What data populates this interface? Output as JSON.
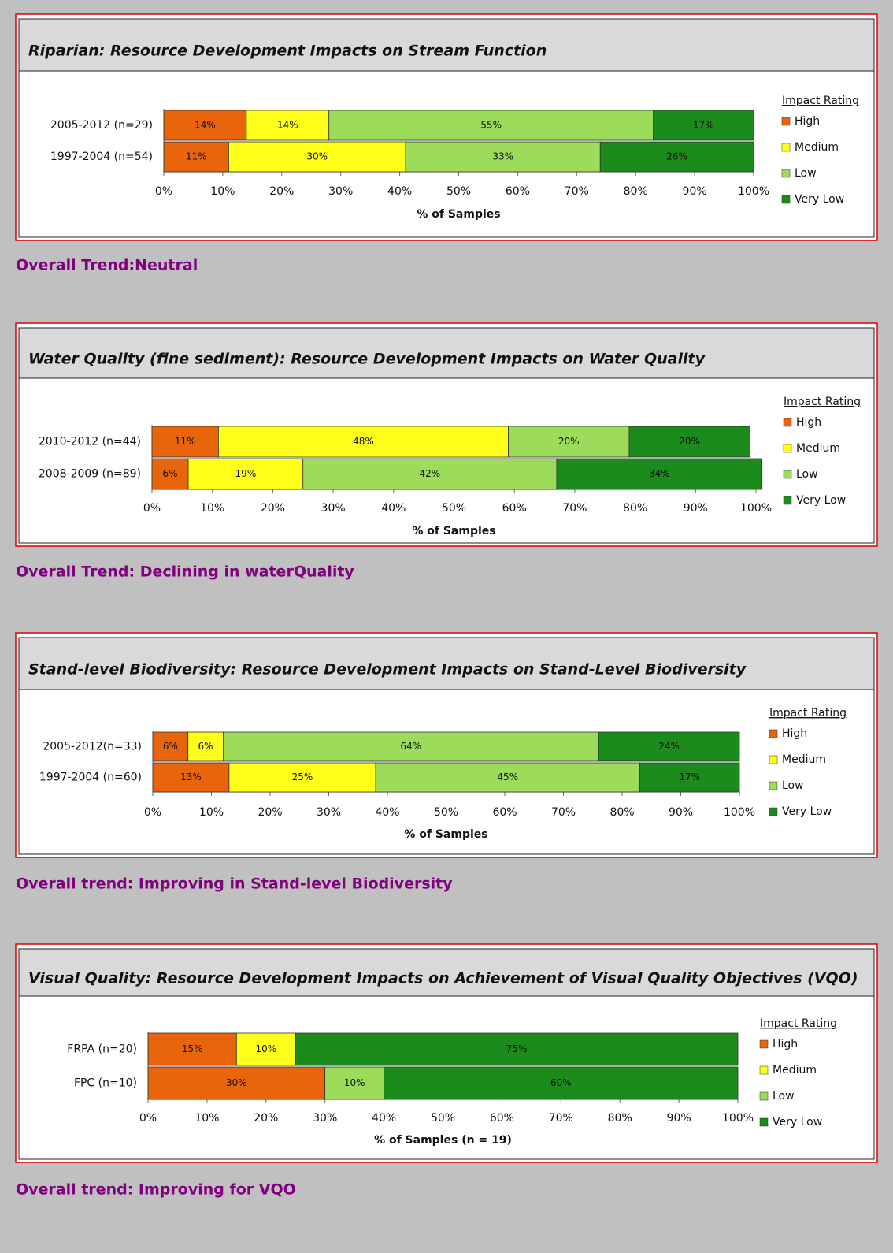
{
  "chart_data": [
    {
      "type": "stacked-bar",
      "title": "Riparian: Resource Development Impacts on Stream Function",
      "categories": [
        "2005-2012 (n=29)",
        "1997-2004 (n=54)"
      ],
      "series": [
        {
          "name": "High",
          "color": "#e8650c",
          "values": [
            14,
            11
          ],
          "value_labels": [
            "14%",
            "11%"
          ]
        },
        {
          "name": "Medium",
          "color": "#ffff1a",
          "values": [
            14,
            30
          ],
          "value_labels": [
            "14%",
            "30%"
          ]
        },
        {
          "name": "Low",
          "color": "#9ddc5a",
          "values": [
            55,
            33
          ],
          "value_labels": [
            "55%",
            "33%"
          ]
        },
        {
          "name": "Very Low",
          "color": "#1b8c1b",
          "values": [
            17,
            26
          ],
          "value_labels": [
            "17%",
            "26%"
          ]
        }
      ],
      "xlabel": "% of Samples",
      "legend_title": "Impact Rating",
      "xlim": [
        0,
        100
      ],
      "xticks": [
        {
          "value": 0,
          "label": "0%"
        },
        {
          "value": 10,
          "label": "10%"
        },
        {
          "value": 20,
          "label": "20%"
        },
        {
          "value": 30,
          "label": "30%"
        },
        {
          "value": 40,
          "label": "40%"
        },
        {
          "value": 50,
          "label": "50%"
        },
        {
          "value": 60,
          "label": "60%"
        },
        {
          "value": 70,
          "label": "70%"
        },
        {
          "value": 80,
          "label": "80%"
        },
        {
          "value": 90,
          "label": "90%"
        },
        {
          "value": 100,
          "label": "100%"
        }
      ],
      "legend": "right"
    },
    {
      "type": "stacked-bar",
      "title": "Water Quality (fine sediment): Resource Development Impacts on Water Quality",
      "categories": [
        "2010-2012 (n=44)",
        "2008-2009 (n=89)"
      ],
      "series": [
        {
          "name": "High",
          "color": "#e8650c",
          "values": [
            11,
            6
          ],
          "value_labels": [
            "11%",
            "6%"
          ]
        },
        {
          "name": "Medium",
          "color": "#ffff1a",
          "values": [
            48,
            19
          ],
          "value_labels": [
            "48%",
            "19%"
          ]
        },
        {
          "name": "Low",
          "color": "#9ddc5a",
          "values": [
            20,
            42
          ],
          "value_labels": [
            "20%",
            "42%"
          ]
        },
        {
          "name": "Very Low",
          "color": "#1b8c1b",
          "values": [
            20,
            34
          ],
          "value_labels": [
            "20%",
            "34%"
          ]
        }
      ],
      "xlabel": "% of Samples",
      "legend_title": "Impact Rating",
      "xlim": [
        0,
        100
      ],
      "xticks": [
        {
          "value": 0,
          "label": "0%"
        },
        {
          "value": 10,
          "label": "10%"
        },
        {
          "value": 20,
          "label": "20%"
        },
        {
          "value": 30,
          "label": "30%"
        },
        {
          "value": 40,
          "label": "40%"
        },
        {
          "value": 50,
          "label": "50%"
        },
        {
          "value": 60,
          "label": "60%"
        },
        {
          "value": 70,
          "label": "70%"
        },
        {
          "value": 80,
          "label": "80%"
        },
        {
          "value": 90,
          "label": "90%"
        },
        {
          "value": 100,
          "label": "100%"
        }
      ],
      "legend": "right"
    },
    {
      "type": "stacked-bar",
      "title": "Stand-level Biodiversity: Resource Development Impacts on Stand-Level Biodiversity",
      "categories": [
        "2005-2012(n=33)",
        "1997-2004 (n=60)"
      ],
      "series": [
        {
          "name": "High",
          "color": "#e8650c",
          "values": [
            6,
            13
          ],
          "value_labels": [
            "6%",
            "13%"
          ]
        },
        {
          "name": "Medium",
          "color": "#ffff1a",
          "values": [
            6,
            25
          ],
          "value_labels": [
            "6%",
            "25%"
          ]
        },
        {
          "name": "Low",
          "color": "#9ddc5a",
          "values": [
            64,
            45
          ],
          "value_labels": [
            "64%",
            "45%"
          ]
        },
        {
          "name": "Very Low",
          "color": "#1b8c1b",
          "values": [
            24,
            17
          ],
          "value_labels": [
            "24%",
            "17%"
          ]
        }
      ],
      "xlabel": "% of Samples",
      "legend_title": "Impact Rating",
      "xlim": [
        0,
        100
      ],
      "xticks": [
        {
          "value": 0,
          "label": "0%"
        },
        {
          "value": 10,
          "label": "10%"
        },
        {
          "value": 20,
          "label": "20%"
        },
        {
          "value": 30,
          "label": "30%"
        },
        {
          "value": 40,
          "label": "40%"
        },
        {
          "value": 50,
          "label": "50%"
        },
        {
          "value": 60,
          "label": "60%"
        },
        {
          "value": 70,
          "label": "70%"
        },
        {
          "value": 80,
          "label": "80%"
        },
        {
          "value": 90,
          "label": "90%"
        },
        {
          "value": 100,
          "label": "100%"
        }
      ],
      "legend": "right"
    },
    {
      "type": "stacked-bar",
      "title": "Visual Quality: Resource Development Impacts on Achievement of Visual Quality Objectives (VQO)",
      "categories": [
        "FRPA (n=20)",
        "FPC (n=10)"
      ],
      "series": [
        {
          "name": "High",
          "color": "#e8650c",
          "values": [
            15,
            30
          ],
          "value_labels": [
            "15%",
            "30%"
          ]
        },
        {
          "name": "Medium",
          "color": "#ffff1a",
          "values": [
            10,
            null
          ],
          "value_labels": [
            "10%",
            null
          ]
        },
        {
          "name": "Low",
          "color": "#9ddc5a",
          "values": [
            null,
            10
          ],
          "value_labels": [
            null,
            "10%"
          ]
        },
        {
          "name": "Very Low",
          "color": "#1b8c1b",
          "values": [
            75,
            60
          ],
          "value_labels": [
            "75%",
            "60%"
          ]
        }
      ],
      "xlabel": "% of Samples (n = 19)",
      "legend_title": "Impact Rating",
      "xlim": [
        0,
        100
      ],
      "xticks": [
        {
          "value": 0,
          "label": "0%"
        },
        {
          "value": 10,
          "label": "10%"
        },
        {
          "value": 20,
          "label": "20%"
        },
        {
          "value": 30,
          "label": "30%"
        },
        {
          "value": 40,
          "label": "40%"
        },
        {
          "value": 50,
          "label": "50%"
        },
        {
          "value": 60,
          "label": "60%"
        },
        {
          "value": 70,
          "label": "70%"
        },
        {
          "value": 80,
          "label": "80%"
        },
        {
          "value": 90,
          "label": "90%"
        },
        {
          "value": 100,
          "label": "100%"
        }
      ],
      "legend": "right"
    }
  ],
  "trends": [
    "Overall Trend:Neutral",
    "Overall Trend: Declining in waterQuality",
    "Overall trend: Improving in Stand-level Biodiversity",
    "Overall trend: Improving for VQO"
  ]
}
